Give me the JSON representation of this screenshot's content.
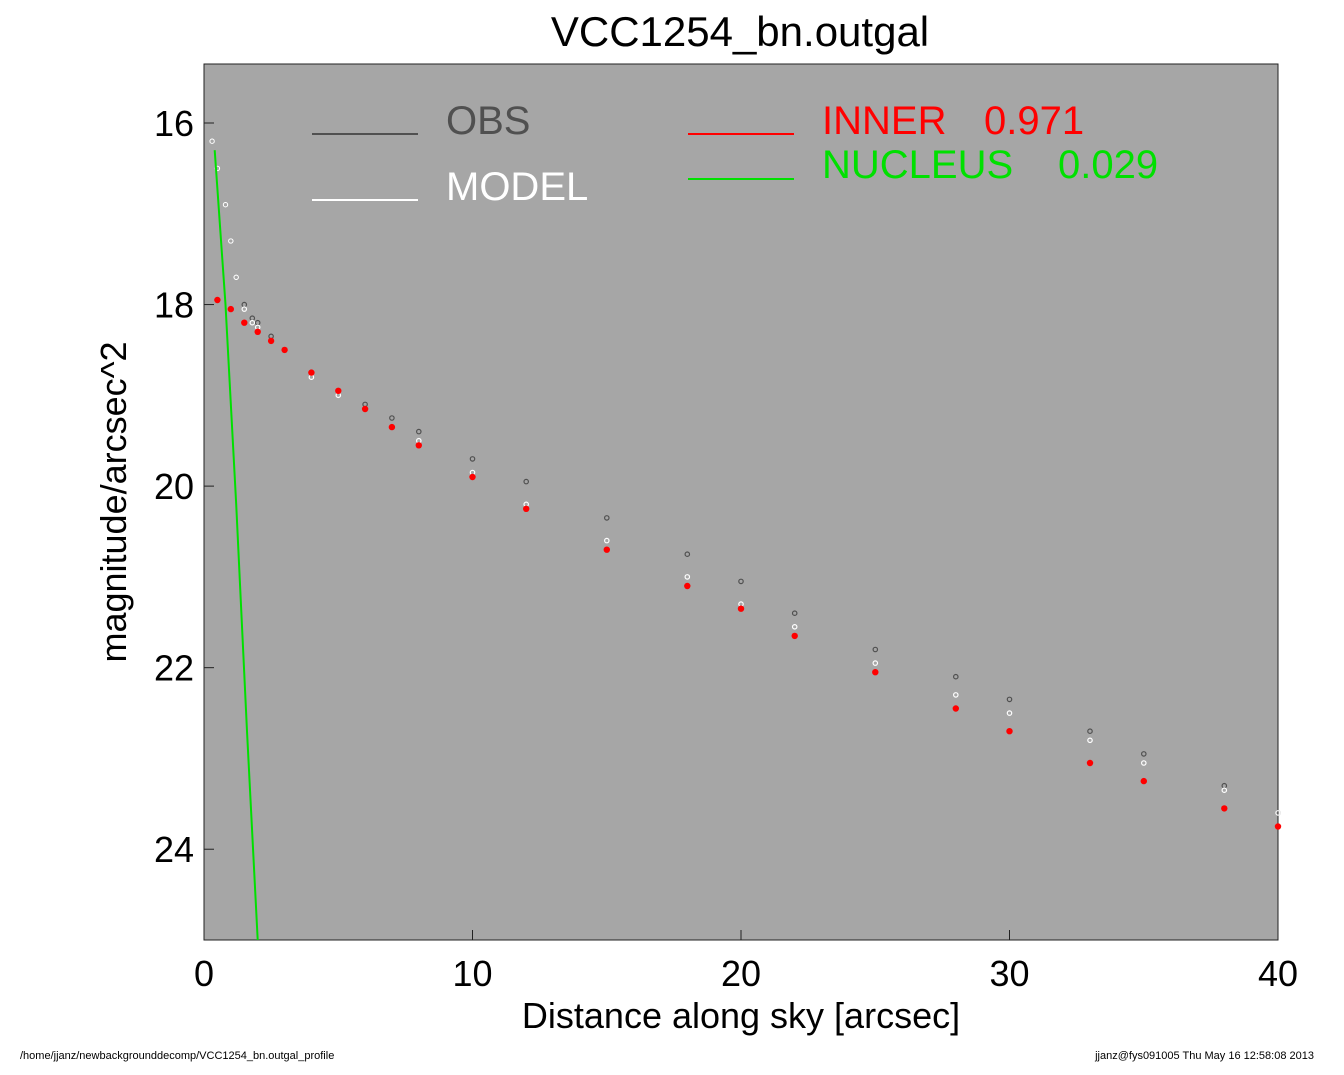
{
  "footer": {
    "path": "/home/jjanz/newbackgrounddecomp/VCC1254_bn.outgal_profile",
    "stamp": "jjanz@fys091005  Thu May 16 12:58:08 2013"
  },
  "chart_data": {
    "type": "scatter",
    "title": "VCC1254_bn.outgal",
    "xlabel": "Distance along sky [arcsec]",
    "ylabel": "magnitude/arcsec^2",
    "xlim": [
      0,
      40
    ],
    "ylim": [
      25.0,
      15.35
    ],
    "y_inverted": true,
    "xticks": [
      0,
      10,
      20,
      30,
      40
    ],
    "yticks": [
      16,
      18,
      20,
      22,
      24
    ],
    "background": "#a6a6a6",
    "grid": false,
    "legend": [
      {
        "name": "OBS",
        "color": "#505050",
        "placement": "top-left"
      },
      {
        "name": "MODEL",
        "color": "#ffffff",
        "placement": "top-left"
      },
      {
        "name": "INNER",
        "value": "0.971",
        "color": "#ff0000",
        "placement": "top-right"
      },
      {
        "name": "NUCLEUS",
        "value": "0.029",
        "color": "#00e000",
        "placement": "top-right"
      }
    ],
    "series": [
      {
        "name": "OBS",
        "kind": "points",
        "color": "#505050",
        "x": [
          0.3,
          0.5,
          0.8,
          1.0,
          1.2,
          1.5,
          1.8,
          2.0,
          2.5,
          3,
          4,
          5,
          6,
          7,
          8,
          10,
          12,
          15,
          18,
          20,
          22,
          25,
          28,
          30,
          33,
          35,
          38,
          40
        ],
        "y": [
          16.2,
          16.5,
          16.9,
          17.3,
          17.7,
          18.0,
          18.15,
          18.2,
          18.35,
          18.5,
          18.75,
          18.95,
          19.1,
          19.25,
          19.4,
          19.7,
          19.95,
          20.35,
          20.75,
          21.05,
          21.4,
          21.8,
          22.1,
          22.35,
          22.7,
          22.95,
          23.3,
          23.6
        ]
      },
      {
        "name": "MODEL",
        "kind": "points",
        "color": "#ffffff",
        "x": [
          0.3,
          0.5,
          0.8,
          1.0,
          1.2,
          1.5,
          1.8,
          2.0,
          2.5,
          3,
          4,
          5,
          6,
          8,
          10,
          12,
          15,
          18,
          20,
          22,
          25,
          28,
          30,
          33,
          35,
          38,
          40
        ],
        "y": [
          16.2,
          16.5,
          16.9,
          17.3,
          17.7,
          18.05,
          18.2,
          18.25,
          18.4,
          18.5,
          18.8,
          19.0,
          19.15,
          19.5,
          19.85,
          20.2,
          20.6,
          21.0,
          21.3,
          21.55,
          21.95,
          22.3,
          22.5,
          22.8,
          23.05,
          23.35,
          23.6
        ]
      },
      {
        "name": "INNER",
        "kind": "points",
        "color": "#ff0000",
        "x": [
          0.5,
          1.0,
          1.5,
          2.0,
          2.5,
          3,
          4,
          5,
          6,
          7,
          8,
          10,
          12,
          15,
          18,
          20,
          22,
          25,
          28,
          30,
          33,
          35,
          38,
          40
        ],
        "y": [
          17.95,
          18.05,
          18.2,
          18.3,
          18.4,
          18.5,
          18.75,
          18.95,
          19.15,
          19.35,
          19.55,
          19.9,
          20.25,
          20.7,
          21.1,
          21.35,
          21.65,
          22.05,
          22.45,
          22.7,
          23.05,
          23.25,
          23.55,
          23.75
        ]
      },
      {
        "name": "NUCLEUS",
        "kind": "line",
        "color": "#00e000",
        "x": [
          0.4,
          0.8,
          1.2,
          1.6,
          2.0
        ],
        "y": [
          16.3,
          18.0,
          20.2,
          22.7,
          25.0
        ]
      }
    ]
  }
}
